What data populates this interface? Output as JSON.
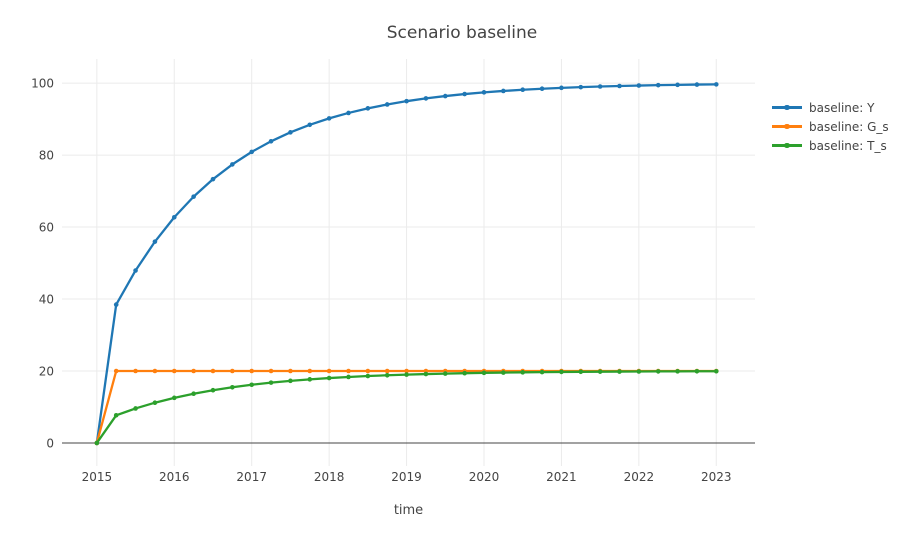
{
  "chart_data": {
    "type": "line",
    "mode": "lines+markers",
    "title": "Scenario baseline",
    "xlabel": "time",
    "ylabel": "",
    "grid": true,
    "legend_position": "right",
    "xlim": [
      2014.55,
      2023.5
    ],
    "ylim": [
      -6.4,
      106.7
    ],
    "xticks": [
      2015,
      2016,
      2017,
      2018,
      2019,
      2020,
      2021,
      2022,
      2023
    ],
    "yticks": [
      0,
      20,
      40,
      60,
      80,
      100
    ],
    "x": [
      2015,
      2015.25,
      2015.5,
      2015.75,
      2016,
      2016.25,
      2016.5,
      2016.75,
      2017,
      2017.25,
      2017.5,
      2017.75,
      2018,
      2018.25,
      2018.5,
      2018.75,
      2019,
      2019.25,
      2019.5,
      2019.75,
      2020,
      2020.25,
      2020.5,
      2020.75,
      2021,
      2021.25,
      2021.5,
      2021.75,
      2022,
      2022.25,
      2022.5,
      2022.75,
      2023
    ],
    "series": [
      {
        "name": "baseline: Y",
        "color": "#1f77b4",
        "values": [
          0,
          38.46,
          47.93,
          55.94,
          62.72,
          68.45,
          73.31,
          77.41,
          80.89,
          83.83,
          86.32,
          88.42,
          90.2,
          91.71,
          92.99,
          94.06,
          94.98,
          95.75,
          96.4,
          96.96,
          97.43,
          97.82,
          98.16,
          98.44,
          98.68,
          98.88,
          99.06,
          99.2,
          99.32,
          99.43,
          99.52,
          99.59,
          99.65
        ]
      },
      {
        "name": "baseline: G_s",
        "color": "#ff7f0e",
        "values": [
          0,
          20,
          20,
          20,
          20,
          20,
          20,
          20,
          20,
          20,
          20,
          20,
          20,
          20,
          20,
          20,
          20,
          20,
          20,
          20,
          20,
          20,
          20,
          20,
          20,
          20,
          20,
          20,
          20,
          20,
          20,
          20,
          20
        ]
      },
      {
        "name": "baseline: T_s",
        "color": "#2ca02c",
        "values": [
          0,
          7.69,
          9.59,
          11.19,
          12.54,
          13.69,
          14.66,
          15.48,
          16.18,
          16.77,
          17.26,
          17.68,
          18.04,
          18.34,
          18.6,
          18.81,
          19.0,
          19.15,
          19.28,
          19.39,
          19.49,
          19.56,
          19.63,
          19.69,
          19.74,
          19.78,
          19.81,
          19.84,
          19.86,
          19.89,
          19.9,
          19.92,
          19.93
        ]
      }
    ],
    "colors": {
      "background": "#ffffff",
      "gridline": "#ebebeb",
      "zeroline": "#444444",
      "text": "#444444"
    }
  }
}
